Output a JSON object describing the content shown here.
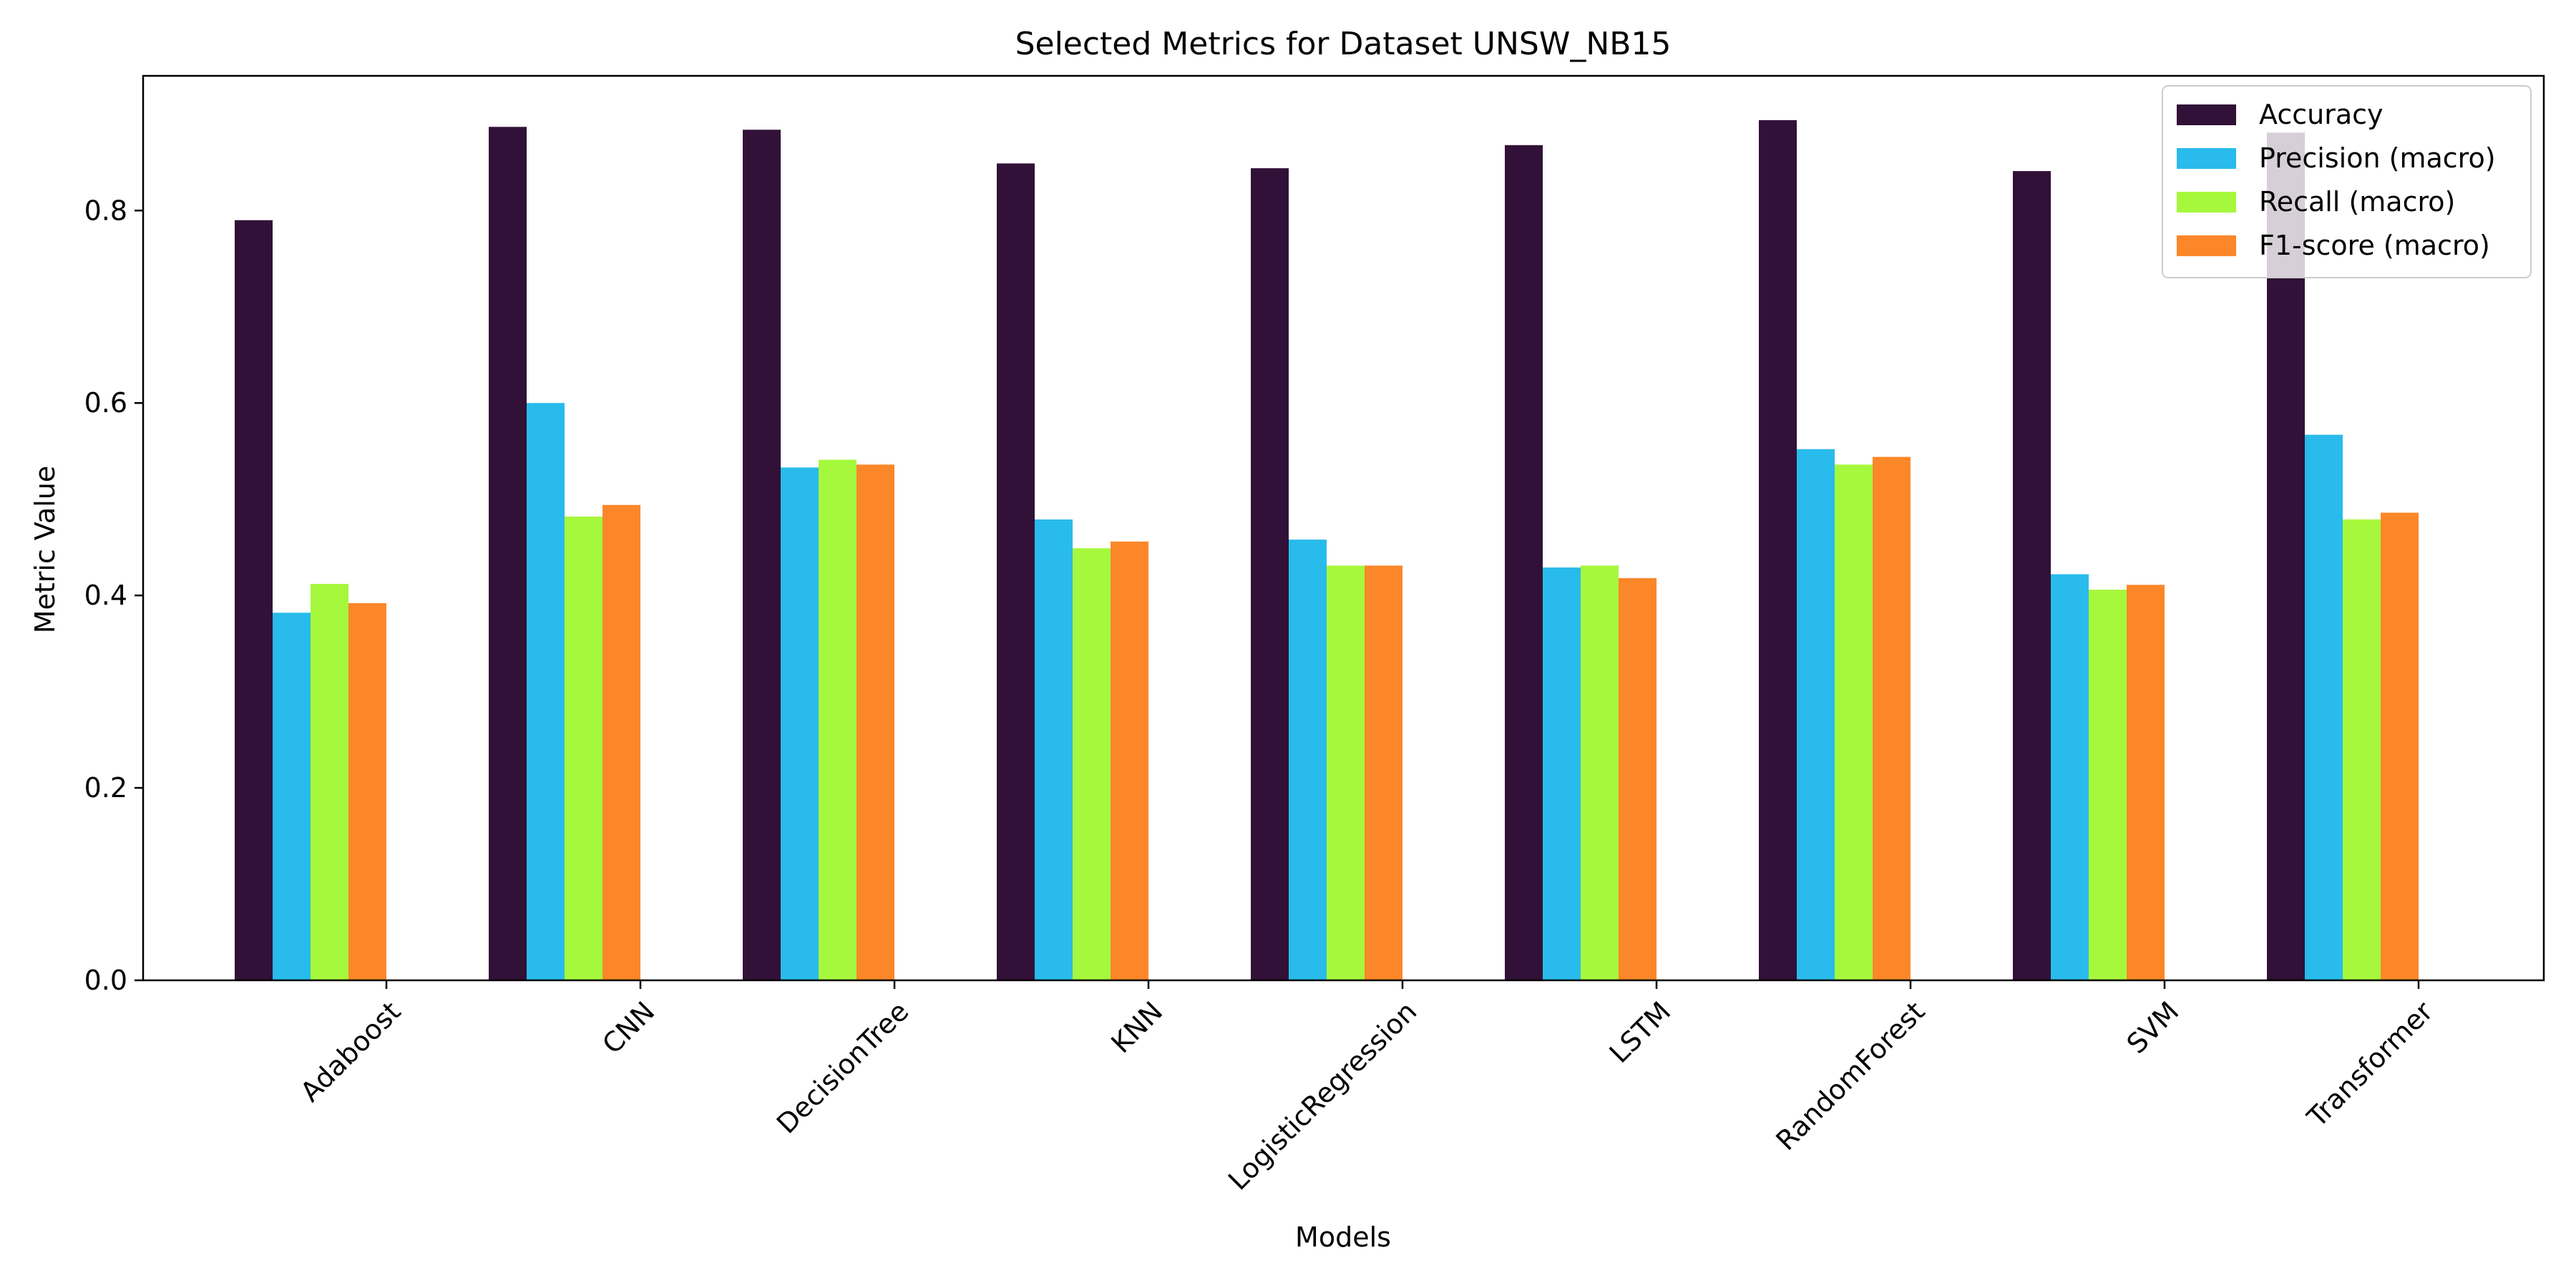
{
  "chart_data": {
    "type": "bar",
    "title": "Selected Metrics for Dataset UNSW_NB15",
    "xlabel": "Models",
    "ylabel": "Metric Value",
    "categories": [
      "Adaboost",
      "CNN",
      "DecisionTree",
      "KNN",
      "LogisticRegression",
      "LSTM",
      "RandomForest",
      "SVM",
      "Transformer"
    ],
    "ylim": [
      0,
      0.94
    ],
    "yticks": [
      0.0,
      0.2,
      0.4,
      0.6,
      0.8
    ],
    "ytick_labels": [
      "0.0",
      "0.2",
      "0.4",
      "0.6",
      "0.8"
    ],
    "grid": false,
    "legend_position": "top-right",
    "series": [
      {
        "name": "Accuracy",
        "color": "#321138",
        "values": [
          0.79,
          0.887,
          0.884,
          0.849,
          0.844,
          0.868,
          0.894,
          0.841,
          0.881
        ]
      },
      {
        "name": "Precision (macro)",
        "color": "#29bbeb",
        "values": [
          0.382,
          0.6,
          0.533,
          0.479,
          0.458,
          0.429,
          0.552,
          0.422,
          0.567
        ]
      },
      {
        "name": "Recall (macro)",
        "color": "#a6f83c",
        "values": [
          0.412,
          0.482,
          0.541,
          0.449,
          0.431,
          0.431,
          0.536,
          0.406,
          0.479
        ]
      },
      {
        "name": "F1-score (macro)",
        "color": "#fc8729",
        "values": [
          0.392,
          0.494,
          0.536,
          0.456,
          0.431,
          0.418,
          0.544,
          0.411,
          0.486
        ]
      }
    ]
  }
}
